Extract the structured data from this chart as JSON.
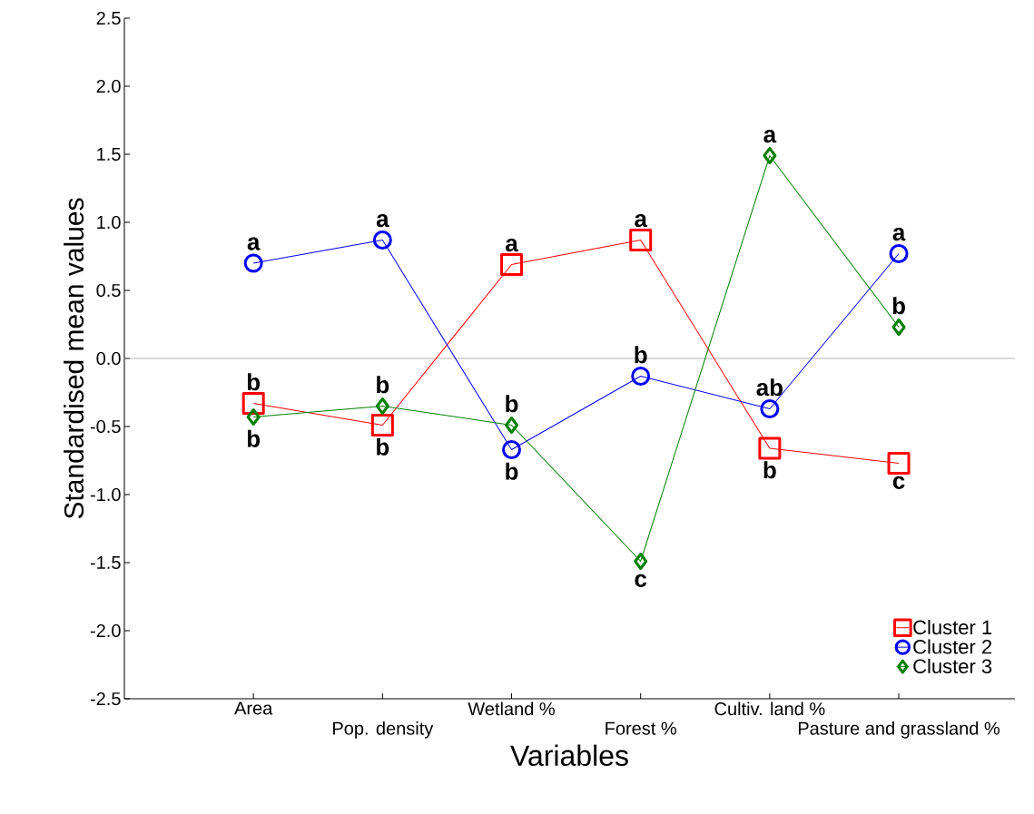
{
  "chart_data": {
    "type": "line",
    "xlabel": "Variables",
    "ylabel": "Standardised mean values",
    "categories": [
      "Area",
      "Pop. density",
      "Wetland %",
      "Forest %",
      "Cultiv. land %",
      "Pasture and grassland %"
    ],
    "series": [
      {
        "name": "Cluster  1",
        "color": "#ff0000",
        "marker": "square",
        "values": [
          -0.33,
          -0.49,
          0.69,
          0.87,
          -0.66,
          -0.77
        ]
      },
      {
        "name": "Cluster  2",
        "color": "#0000ff",
        "marker": "circle",
        "values": [
          0.7,
          0.87,
          -0.67,
          -0.13,
          -0.37,
          0.77
        ]
      },
      {
        "name": "Cluster  3",
        "color": "#008000",
        "marker": "diamond",
        "values": [
          -0.43,
          -0.35,
          -0.49,
          -1.49,
          1.49,
          0.23
        ]
      }
    ],
    "ylim": [
      -2.5,
      2.5
    ],
    "yticks": [
      {
        "value": -2.5,
        "label": "-2.5"
      },
      {
        "value": -2,
        "label": "-2.0"
      },
      {
        "value": -1.5,
        "label": "-1.5"
      },
      {
        "value": -1,
        "label": "-1.0"
      },
      {
        "value": -0.5,
        "label": "-0.5"
      },
      {
        "value": 0,
        "label": "0.0"
      },
      {
        "value": 0.5,
        "label": "0.5"
      },
      {
        "value": 1,
        "label": "1.0"
      },
      {
        "value": 1.5,
        "label": "1.5"
      },
      {
        "value": 2,
        "label": "2.0"
      },
      {
        "value": 2.5,
        "label": "2.5"
      }
    ],
    "ref_lines": [
      {
        "axis": "y",
        "value": 0,
        "color": "#a0a0a0"
      }
    ],
    "legend": "bottom right",
    "grid": false,
    "line_style": "solid",
    "annotations": [
      {
        "text": "a",
        "x": "Area",
        "y": 0.7
      },
      {
        "text": "b",
        "x": "Area",
        "y": -0.33
      },
      {
        "text": "b",
        "x": "Area",
        "y": -0.43
      },
      {
        "text": "a",
        "x": "Pop. density",
        "y": 0.87
      },
      {
        "text": "b",
        "x": "Pop. density",
        "y": -0.35
      },
      {
        "text": "b",
        "x": "Pop. density",
        "y": -0.49
      },
      {
        "text": "a",
        "x": "Wetland %",
        "y": 0.69
      },
      {
        "text": "b",
        "x": "Wetland %",
        "y": -0.49
      },
      {
        "text": "b",
        "x": "Wetland %",
        "y": -0.67
      },
      {
        "text": "a",
        "x": "Forest %",
        "y": 0.87
      },
      {
        "text": "b",
        "x": "Forest %",
        "y": -0.13
      },
      {
        "text": "c",
        "x": "Forest %",
        "y": -1.49
      },
      {
        "text": "a",
        "x": "Cultiv. land %",
        "y": 1.49
      },
      {
        "text": "ab",
        "x": "Cultiv. land %",
        "y": -0.37
      },
      {
        "text": "b",
        "x": "Cultiv. land %",
        "y": -0.66
      },
      {
        "text": "a",
        "x": "Pasture and grassland %",
        "y": 0.77
      },
      {
        "text": "b",
        "x": "Pasture and grassland %",
        "y": 0.23
      },
      {
        "text": "c",
        "x": "Pasture and grassland %",
        "y": -0.77
      }
    ]
  }
}
